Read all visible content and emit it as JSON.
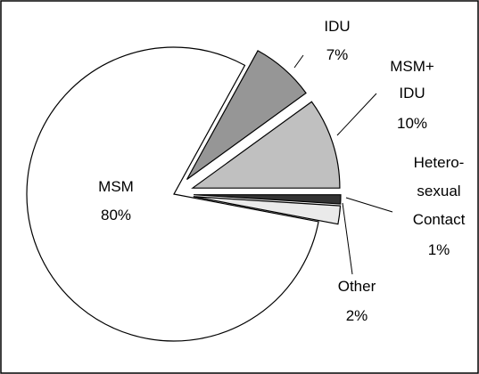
{
  "chart_data": {
    "type": "pie",
    "categories": [
      "MSM",
      "IDU",
      "MSM+\nIDU",
      "Hetero-\nsexual\nContact",
      "Other"
    ],
    "values": [
      80,
      7,
      10,
      1,
      2
    ],
    "value_labels": [
      "80%",
      "7%",
      "10%",
      "1%",
      "2%"
    ],
    "colors": [
      "#ffffff",
      "#969696",
      "#c0c0c0",
      "#333333",
      "#eaeaea"
    ]
  }
}
